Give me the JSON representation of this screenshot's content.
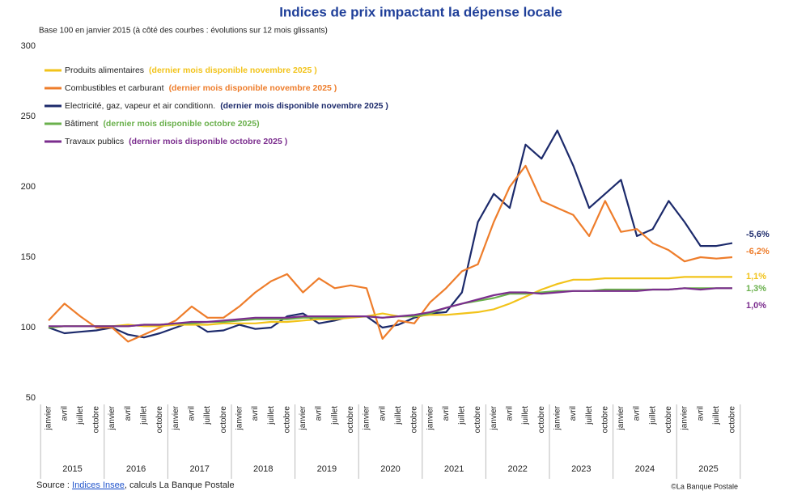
{
  "chart_data": {
    "type": "line",
    "title": "Indices de prix impactant la dépense locale",
    "subtitle": "Base 100 en janvier 2015 (à côté des courbes : évolutions sur 12 mois glissants)",
    "source_prefix": "Source : ",
    "source_link": "Indices Insee",
    "source_suffix": ", calculs La Banque Postale",
    "credit": "©La Banque Postale",
    "categories": [
      "janvier",
      "avril",
      "juillet",
      "octobre",
      "janvier",
      "avril",
      "juillet",
      "octobre",
      "janvier",
      "avril",
      "juillet",
      "octobre",
      "janvier",
      "avril",
      "juillet",
      "octobre",
      "janvier",
      "avril",
      "juillet",
      "octobre",
      "janvier",
      "avril",
      "juillet",
      "octobre",
      "janvier",
      "avril",
      "juillet",
      "octobre",
      "janvier",
      "avril",
      "juillet",
      "octobre",
      "janvier",
      "avril",
      "juillet",
      "octobre",
      "janvier",
      "avril",
      "juillet",
      "octobre",
      "janvier",
      "avril",
      "juillet",
      "octobre"
    ],
    "years": [
      "2015",
      "2016",
      "2017",
      "2018",
      "2019",
      "2020",
      "2021",
      "2022",
      "2023",
      "2024",
      "2025"
    ],
    "ylim": [
      50,
      300
    ],
    "yticks": [
      50,
      100,
      150,
      200,
      250,
      300
    ],
    "grid": false,
    "series": [
      {
        "name": "Produits alimentaires",
        "note": "(dernier mois disponible novembre 2025 )",
        "color": "#f2c31a",
        "end_label": "1,1%",
        "values": [
          100,
          101,
          101,
          101,
          101,
          102,
          101,
          101,
          102,
          102,
          102,
          103,
          103,
          103,
          104,
          104,
          105,
          106,
          106,
          107,
          108,
          110,
          108,
          108,
          109,
          109,
          110,
          111,
          113,
          117,
          122,
          127,
          131,
          134,
          134,
          135,
          135,
          135,
          135,
          135,
          136,
          136,
          136,
          136
        ]
      },
      {
        "name": "Combustibles et carburant",
        "note": "(dernier mois disponible novembre 2025 )",
        "color": "#ee7d2b",
        "end_label": "-6,2%",
        "values": [
          105,
          117,
          108,
          100,
          100,
          90,
          95,
          100,
          105,
          115,
          107,
          107,
          115,
          125,
          133,
          138,
          125,
          135,
          128,
          130,
          128,
          92,
          105,
          103,
          118,
          128,
          140,
          145,
          175,
          200,
          215,
          190,
          185,
          180,
          165,
          190,
          168,
          170,
          160,
          155,
          147,
          150,
          149,
          150
        ]
      },
      {
        "name": "Electricité, gaz, vapeur et air conditionn.",
        "note": "(dernier mois disponible novembre 2025 )",
        "color": "#1c2a6b",
        "end_label": "-5,6%",
        "values": [
          100,
          96,
          97,
          98,
          100,
          95,
          93,
          96,
          100,
          104,
          97,
          98,
          102,
          99,
          100,
          108,
          110,
          103,
          105,
          108,
          108,
          100,
          102,
          107,
          110,
          111,
          125,
          175,
          195,
          185,
          230,
          220,
          240,
          215,
          185,
          195,
          205,
          165,
          170,
          190,
          175,
          158,
          158,
          160
        ]
      },
      {
        "name": "Bâtiment",
        "note": "(dernier mois disponible octobre 2025)",
        "color": "#6ab04c",
        "end_label": "1,3%",
        "values": [
          100,
          101,
          101,
          101,
          101,
          101,
          102,
          102,
          103,
          103,
          104,
          104,
          105,
          106,
          106,
          106,
          107,
          107,
          107,
          108,
          108,
          107,
          108,
          108,
          110,
          114,
          117,
          119,
          121,
          124,
          124,
          125,
          126,
          126,
          126,
          127,
          127,
          127,
          127,
          127,
          128,
          128,
          128,
          128
        ]
      },
      {
        "name": "Travaux publics",
        "note": "(dernier mois disponible octobre 2025 )",
        "color": "#7b2d8e",
        "end_label": "1,0%",
        "values": [
          101,
          101,
          101,
          101,
          101,
          101,
          102,
          102,
          103,
          104,
          104,
          105,
          106,
          107,
          107,
          107,
          108,
          108,
          108,
          108,
          108,
          107,
          108,
          109,
          111,
          114,
          117,
          120,
          123,
          125,
          125,
          124,
          125,
          126,
          126,
          126,
          126,
          126,
          127,
          127,
          128,
          127,
          128,
          128
        ]
      }
    ]
  }
}
